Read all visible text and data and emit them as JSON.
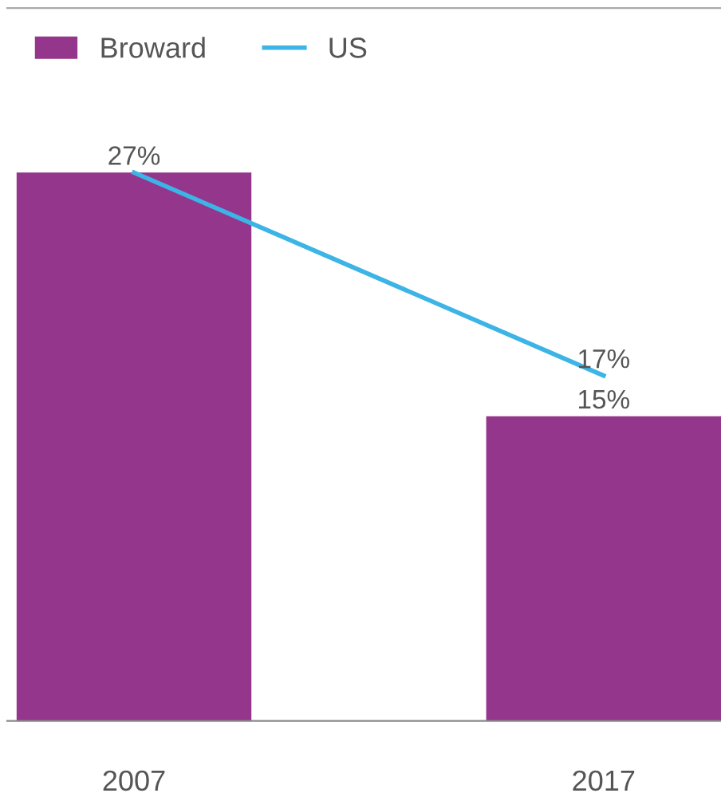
{
  "chart_data": {
    "type": "bar",
    "categories": [
      "2007",
      "2017"
    ],
    "series": [
      {
        "name": "Broward",
        "color": "#94368c",
        "values": [
          27,
          15
        ],
        "value_labels": [
          "27%",
          "15%"
        ]
      },
      {
        "name": "US",
        "type": "line",
        "color": "#3cb4e5",
        "values": [
          27,
          17
        ],
        "value_labels": [
          null,
          "17%"
        ]
      }
    ],
    "legend": "top left",
    "tick_labels": "x",
    "grid": false,
    "marker": "none",
    "line_style": "solid"
  }
}
